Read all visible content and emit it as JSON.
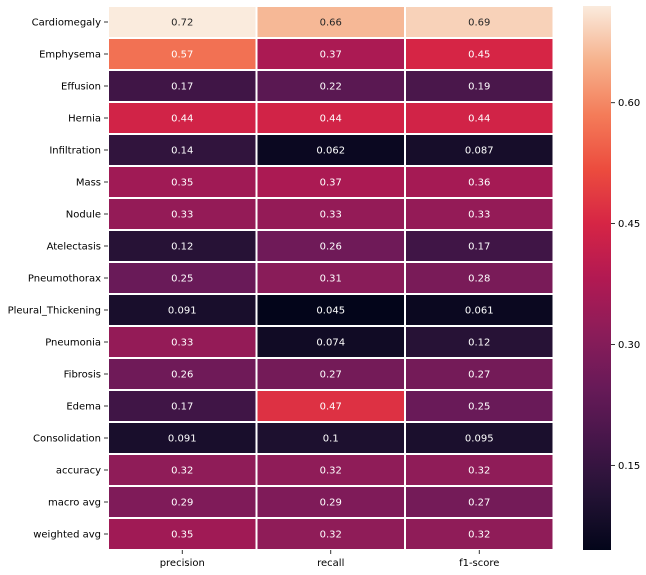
{
  "chart_data": {
    "type": "heatmap",
    "title": "",
    "xlabel": "",
    "ylabel": "",
    "rows": [
      "Cardiomegaly",
      "Emphysema",
      "Effusion",
      "Hernia",
      "Infiltration",
      "Mass",
      "Nodule",
      "Atelectasis",
      "Pneumothorax",
      "Pleural_Thickening",
      "Pneumonia",
      "Fibrosis",
      "Edema",
      "Consolidation",
      "accuracy",
      "macro avg",
      "weighted avg"
    ],
    "columns": [
      "precision",
      "recall",
      "f1-score"
    ],
    "values": [
      [
        0.72,
        0.66,
        0.69
      ],
      [
        0.57,
        0.37,
        0.45
      ],
      [
        0.17,
        0.22,
        0.19
      ],
      [
        0.44,
        0.44,
        0.44
      ],
      [
        0.14,
        0.062,
        0.087
      ],
      [
        0.35,
        0.37,
        0.36
      ],
      [
        0.33,
        0.33,
        0.33
      ],
      [
        0.12,
        0.26,
        0.17
      ],
      [
        0.25,
        0.31,
        0.28
      ],
      [
        0.091,
        0.045,
        0.061
      ],
      [
        0.33,
        0.074,
        0.12
      ],
      [
        0.26,
        0.27,
        0.27
      ],
      [
        0.17,
        0.47,
        0.25
      ],
      [
        0.091,
        0.1,
        0.095
      ],
      [
        0.32,
        0.32,
        0.32
      ],
      [
        0.29,
        0.29,
        0.27
      ],
      [
        0.35,
        0.32,
        0.32
      ]
    ],
    "value_labels": [
      [
        "0.72",
        "0.66",
        "0.69"
      ],
      [
        "0.57",
        "0.37",
        "0.45"
      ],
      [
        "0.17",
        "0.22",
        "0.19"
      ],
      [
        "0.44",
        "0.44",
        "0.44"
      ],
      [
        "0.14",
        "0.062",
        "0.087"
      ],
      [
        "0.35",
        "0.37",
        "0.36"
      ],
      [
        "0.33",
        "0.33",
        "0.33"
      ],
      [
        "0.12",
        "0.26",
        "0.17"
      ],
      [
        "0.25",
        "0.31",
        "0.28"
      ],
      [
        "0.091",
        "0.045",
        "0.061"
      ],
      [
        "0.33",
        "0.074",
        "0.12"
      ],
      [
        "0.26",
        "0.27",
        "0.27"
      ],
      [
        "0.17",
        "0.47",
        "0.25"
      ],
      [
        "0.091",
        "0.1",
        "0.095"
      ],
      [
        "0.32",
        "0.32",
        "0.32"
      ],
      [
        "0.29",
        "0.29",
        "0.27"
      ],
      [
        "0.35",
        "0.32",
        "0.32"
      ]
    ],
    "colormap": "rocket",
    "color_range": [
      0.045,
      0.72
    ],
    "colorbar": {
      "ticks": [
        0.15,
        0.3,
        0.45,
        0.6
      ],
      "tick_labels": [
        "0.15",
        "0.30",
        "0.45",
        "0.60"
      ]
    },
    "cell_border_color": "#ffffff",
    "legend": "colorbar-right",
    "grid": false
  }
}
